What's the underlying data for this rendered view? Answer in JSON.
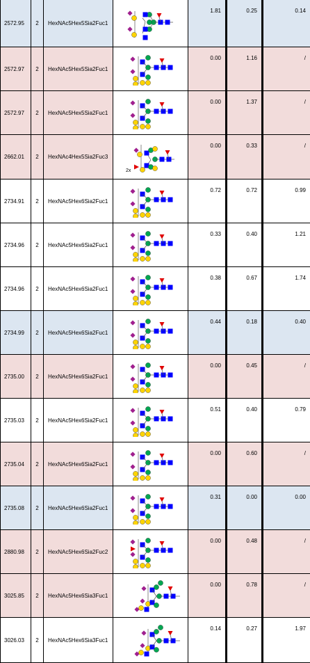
{
  "colors": {
    "row_blue": "#dce6f1",
    "row_pink": "#f2dcdb",
    "row_white": "#ffffff",
    "galnac_square": "#0000ff",
    "mannose_circle": "#00a651",
    "galactose_circle": "#ffd400",
    "neuac_diamond": "#a0208f",
    "fucose_triangle": "#e00000"
  },
  "icons": [
    "glycan-structure-icon"
  ],
  "rows": [
    {
      "mass": "2572.95",
      "z": "2",
      "composition": "HexNAc5Hex5Sia2Fuc1",
      "v1": "1.81",
      "v2": "0.25",
      "v3": "0.14",
      "tint": "blue",
      "variant": "a"
    },
    {
      "mass": "2572.97",
      "z": "2",
      "composition": "HexNAc5Hex5Sia2Fuc1",
      "v1": "0.00",
      "v2": "1.16",
      "v3": "/",
      "tint": "pink",
      "variant": "b"
    },
    {
      "mass": "2572.97",
      "z": "2",
      "composition": "HexNAc5Hex5Sia2Fuc1",
      "v1": "0.00",
      "v2": "1.37",
      "v3": "/",
      "tint": "pink",
      "variant": "c"
    },
    {
      "mass": "2662.01",
      "z": "2",
      "composition": "HexNAc4Hex5Sia2Fuc3",
      "v1": "0.00",
      "v2": "0.33",
      "v3": "/",
      "tint": "pink",
      "variant": "d",
      "badge": "2x"
    },
    {
      "mass": "2734.91",
      "z": "2",
      "composition": "HexNAc5Hex6Sia2Fuc1",
      "v1": "0.72",
      "v2": "0.72",
      "v3": "0.99",
      "tint": "white",
      "variant": "e"
    },
    {
      "mass": "2734.96",
      "z": "2",
      "composition": "HexNAc5Hex6Sia2Fuc1",
      "v1": "0.33",
      "v2": "0.40",
      "v3": "1.21",
      "tint": "white",
      "variant": "e"
    },
    {
      "mass": "2734.96",
      "z": "2",
      "composition": "HexNAc5Hex6Sia2Fuc1",
      "v1": "0.38",
      "v2": "0.67",
      "v3": "1.74",
      "tint": "white",
      "variant": "e"
    },
    {
      "mass": "2734.99",
      "z": "2",
      "composition": "HexNAc5Hex6Sia2Fuc1",
      "v1": "0.44",
      "v2": "0.18",
      "v3": "0.40",
      "tint": "blue",
      "variant": "e"
    },
    {
      "mass": "2735.00",
      "z": "2",
      "composition": "HexNAc5Hex6Sia2Fuc1",
      "v1": "0.00",
      "v2": "0.45",
      "v3": "/",
      "tint": "pink",
      "variant": "e"
    },
    {
      "mass": "2735.03",
      "z": "2",
      "composition": "HexNAc5Hex6Sia2Fuc1",
      "v1": "0.51",
      "v2": "0.40",
      "v3": "0.79",
      "tint": "white",
      "variant": "e"
    },
    {
      "mass": "2735.04",
      "z": "2",
      "composition": "HexNAc5Hex6Sia2Fuc1",
      "v1": "0.00",
      "v2": "0.60",
      "v3": "/",
      "tint": "pink",
      "variant": "e"
    },
    {
      "mass": "2735.08",
      "z": "2",
      "composition": "HexNAc5Hex6Sia2Fuc1",
      "v1": "0.31",
      "v2": "0.00",
      "v3": "0.00",
      "tint": "blue",
      "variant": "e"
    },
    {
      "mass": "2880.98",
      "z": "2",
      "composition": "HexNAc5Hex6Sia2Fuc2",
      "v1": "0.00",
      "v2": "0.48",
      "v3": "/",
      "tint": "pink",
      "variant": "f"
    },
    {
      "mass": "3025.85",
      "z": "2",
      "composition": "HexNAc5Hex6Sia3Fuc1",
      "v1": "0.00",
      "v2": "0.78",
      "v3": "/",
      "tint": "pink",
      "variant": "g"
    },
    {
      "mass": "3026.03",
      "z": "2",
      "composition": "HexNAc5Hex6Sia3Fuc1",
      "v1": "0.14",
      "v2": "0.27",
      "v3": "1.97",
      "tint": "white",
      "variant": "g"
    }
  ]
}
